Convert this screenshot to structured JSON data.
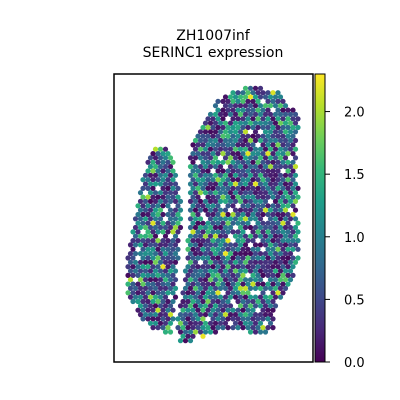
{
  "chart_data": {
    "type": "scatter",
    "title_line1": "ZH1007inf",
    "title_line2": "SERINC1 expression",
    "xlabel": "",
    "ylabel": "",
    "colorbar": {
      "colormap": "viridis",
      "range": [
        0.0,
        2.3
      ],
      "ticks": [
        0.0,
        0.5,
        1.0,
        1.5,
        2.0
      ],
      "tick_labels": [
        "0.0",
        "0.5",
        "1.0",
        "1.5",
        "2.0"
      ]
    },
    "colormap_stops": [
      "#440154",
      "#482878",
      "#3e4989",
      "#31688e",
      "#26828e",
      "#1f9e89",
      "#35b779",
      "#6ece58",
      "#b5de2b",
      "#fde725"
    ],
    "grid": false,
    "frame_color": "#000000",
    "background": "#ffffff"
  }
}
